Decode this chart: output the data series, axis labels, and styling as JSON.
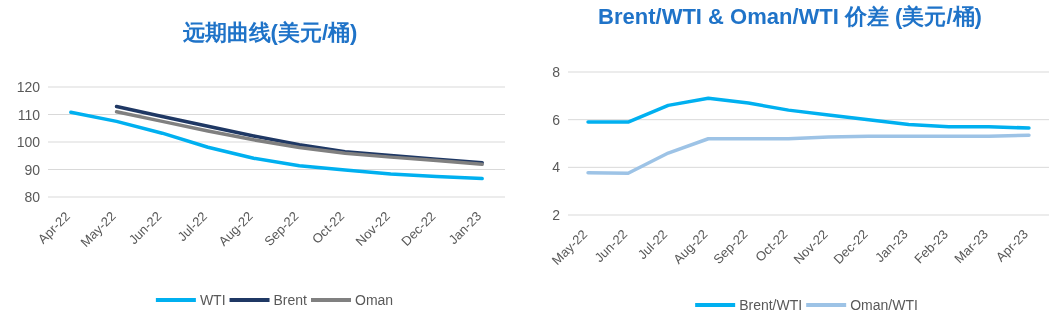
{
  "chart_data": [
    {
      "type": "line",
      "title": "远期曲线(美元/桶)",
      "categories": [
        "Apr-22",
        "May-22",
        "Jun-22",
        "Jul-22",
        "Aug-22",
        "Sep-22",
        "Oct-22",
        "Nov-22",
        "Dec-22",
        "Jan-23"
      ],
      "series": [
        {
          "name": "WTI",
          "color": "#00b0f0",
          "values": [
            110.8,
            107.5,
            103.2,
            98.1,
            94.1,
            91.4,
            89.8,
            88.4,
            87.5,
            86.7
          ]
        },
        {
          "name": "Brent",
          "color": "#1f3864",
          "values": [
            null,
            112.9,
            109.3,
            105.7,
            102.2,
            99,
            96.5,
            95.1,
            93.7,
            92.5
          ]
        },
        {
          "name": "Oman",
          "color": "#808080",
          "values": [
            null,
            111,
            107.5,
            104,
            100.8,
            98,
            95.9,
            94.5,
            93.3,
            91.9
          ]
        }
      ],
      "ylim": [
        80,
        120
      ],
      "yticks": [
        80,
        90,
        100,
        110,
        120
      ],
      "grid": "y",
      "legend": "bottom"
    },
    {
      "type": "line",
      "title": "Brent/WTI & Oman/WTI 价差 (美元/桶)",
      "categories": [
        "May-22",
        "Jun-22",
        "Jul-22",
        "Aug-22",
        "Sep-22",
        "Oct-22",
        "Nov-22",
        "Dec-22",
        "Jan-23",
        "Feb-23",
        "Mar-23",
        "Apr-23"
      ],
      "series": [
        {
          "name": "Brent/WTI",
          "color": "#00b0f0",
          "values": [
            5.9,
            5.9,
            6.6,
            6.9,
            6.7,
            6.4,
            6.2,
            6.0,
            5.8,
            5.7,
            5.7,
            5.65
          ]
        },
        {
          "name": "Oman/WTI",
          "color": "#9dc3e6",
          "values": [
            3.77,
            3.75,
            4.6,
            5.2,
            5.2,
            5.2,
            5.27,
            5.3,
            5.3,
            5.3,
            5.3,
            5.35
          ]
        }
      ],
      "ylim": [
        2,
        8
      ],
      "yticks": [
        2,
        4,
        6,
        8
      ],
      "grid": "y",
      "legend": "bottom"
    }
  ]
}
